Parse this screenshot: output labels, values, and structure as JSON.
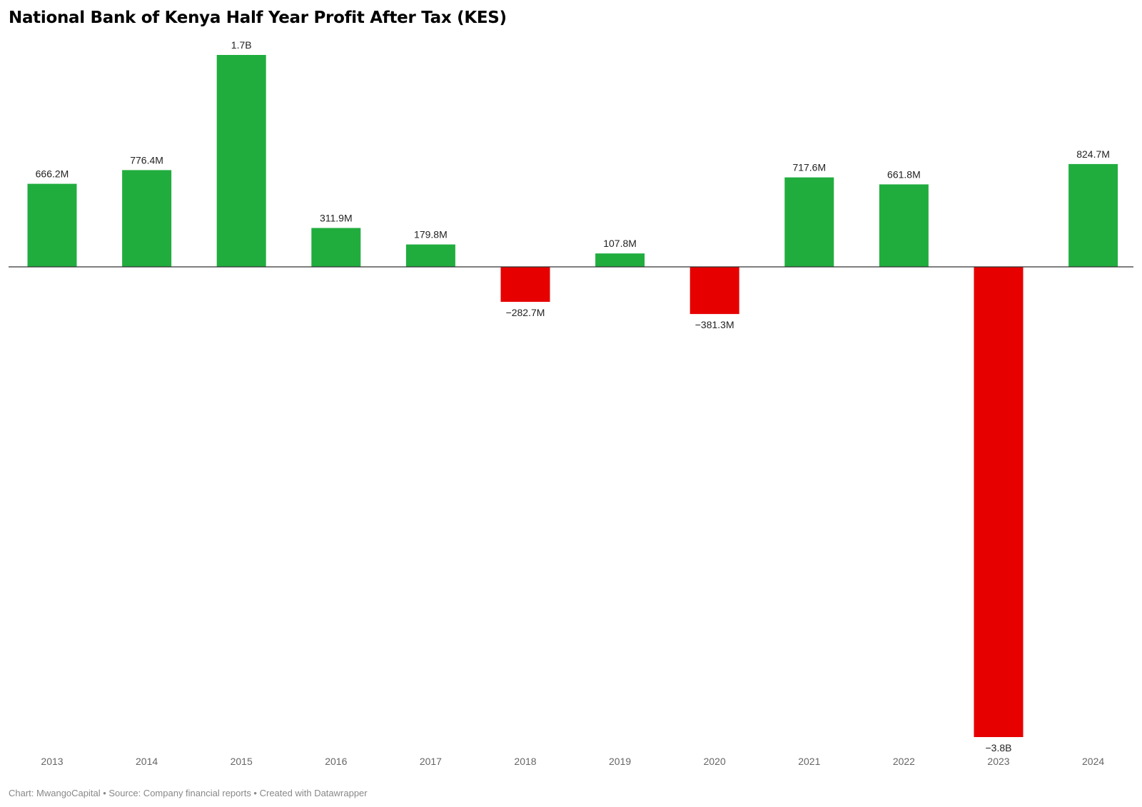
{
  "chart_data": {
    "type": "bar",
    "title": "National Bank of Kenya Half Year Profit After Tax (KES)",
    "categories": [
      "2013",
      "2014",
      "2015",
      "2016",
      "2017",
      "2018",
      "2019",
      "2020",
      "2021",
      "2022",
      "2023",
      "2024"
    ],
    "values": [
      666.2,
      776.4,
      1700,
      311.9,
      179.8,
      -282.7,
      107.8,
      -381.3,
      717.6,
      661.8,
      -3800,
      824.7
    ],
    "value_unit": "millions KES",
    "data_labels": [
      "666.2M",
      "776.4M",
      "1.7B",
      "311.9M",
      "179.8M",
      "−282.7M",
      "107.8M",
      "−381.3M",
      "717.6M",
      "661.8M",
      "−3.8B",
      "824.7M"
    ],
    "xlabel": "",
    "ylabel": "",
    "ylim": [
      -3800,
      1700
    ],
    "grid": false,
    "legend": "none",
    "colors": {
      "positive": "#21ad3e",
      "negative": "#e60000",
      "baseline": "#333333"
    }
  },
  "footer": {
    "text": "Chart: MwangoCapital • Source: Company financial reports • Created with Datawrapper"
  }
}
